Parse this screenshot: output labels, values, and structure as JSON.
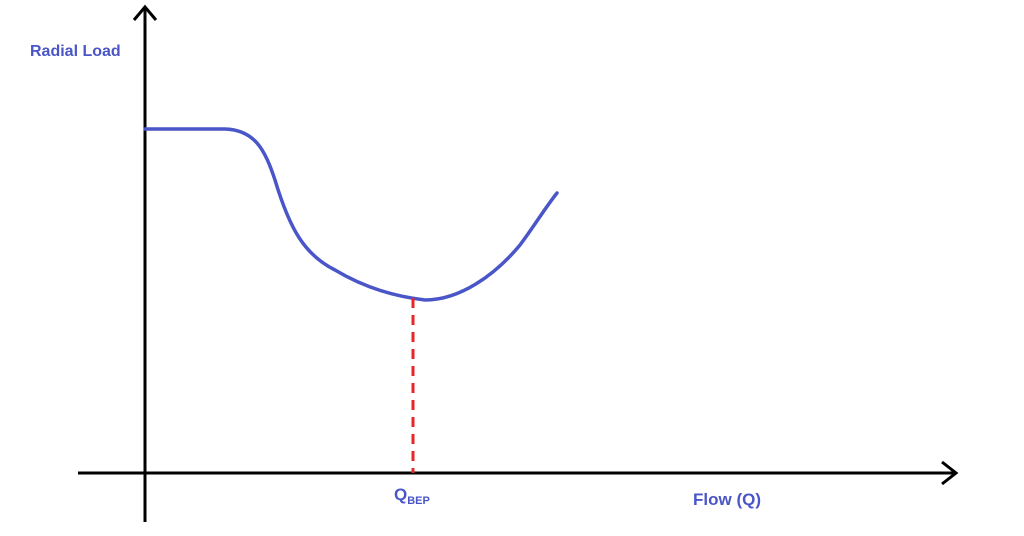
{
  "axes": {
    "y_label": "Radial Load",
    "x_label": "Flow (Q)"
  },
  "marker": {
    "label": "Q",
    "subscript": "BEP"
  }
}
